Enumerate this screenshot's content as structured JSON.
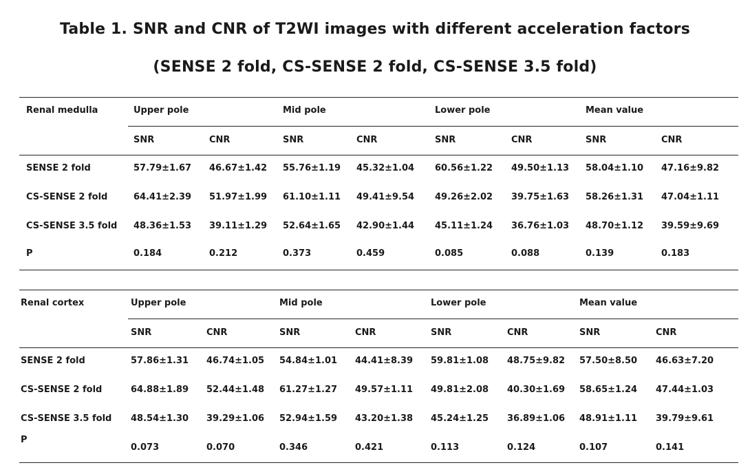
{
  "title_line1": "Table 1. SNR and CNR of T2WI images with different acceleration factors",
  "title_line2": "(SENSE 2 fold, CS-SENSE 2 fold, CS-SENSE 3.5 fold)",
  "tables": [
    {
      "label": "Renal medulla",
      "groups": [
        "Upper pole",
        "Mid pole",
        "Lower pole",
        "Mean value"
      ],
      "subheaders": [
        "SNR",
        "CNR",
        "SNR",
        "CNR",
        "SNR",
        "CNR",
        "SNR",
        "CNR"
      ],
      "rows": [
        {
          "name": "SENSE 2 fold",
          "values": [
            "57.79±1.67",
            "46.67±1.42",
            "55.76±1.19",
            "45.32±1.04",
            "60.56±1.22",
            "49.50±1.13",
            "58.04±1.10",
            "47.16±9.82"
          ]
        },
        {
          "name": "CS-SENSE 2 fold",
          "values": [
            "64.41±2.39",
            "51.97±1.99",
            "61.10±1.11",
            "49.41±9.54",
            "49.26±2.02",
            "39.75±1.63",
            "58.26±1.31",
            "47.04±1.11"
          ]
        },
        {
          "name": "CS-SENSE 3.5 fold",
          "values": [
            "48.36±1.53",
            "39.11±1.29",
            "52.64±1.65",
            "42.90±1.44",
            "45.11±1.24",
            "36.76±1.03",
            "48.70±1.12",
            "39.59±9.69"
          ]
        },
        {
          "name": "P",
          "values": [
            "0.184",
            "0.212",
            "0.373",
            "0.459",
            "0.085",
            "0.088",
            "0.139",
            "0.183"
          ]
        }
      ]
    },
    {
      "label": "Renal cortex",
      "groups": [
        "Upper pole",
        "Mid pole",
        "Lower pole",
        "Mean value"
      ],
      "subheaders": [
        "SNR",
        "CNR",
        "SNR",
        "CNR",
        "SNR",
        "CNR",
        "SNR",
        "CNR"
      ],
      "rows": [
        {
          "name": "SENSE 2 fold",
          "values": [
            "57.86±1.31",
            "46.74±1.05",
            "54.84±1.01",
            "44.41±8.39",
            "59.81±1.08",
            "48.75±9.82",
            "57.50±8.50",
            "46.63±7.20"
          ]
        },
        {
          "name": "CS-SENSE 2 fold",
          "values": [
            "64.88±1.89",
            "52.44±1.48",
            "61.27±1.27",
            "49.57±1.11",
            "49.81±2.08",
            "40.30±1.69",
            "58.65±1.24",
            "47.44±1.03"
          ]
        },
        {
          "name": "CS-SENSE 3.5 fold",
          "values": [
            "48.54±1.30",
            "39.29±1.06",
            "52.94±1.59",
            "43.20±1.38",
            "45.24±1.25",
            "36.89±1.06",
            "48.91±1.11",
            "39.79±9.61"
          ]
        },
        {
          "name": "P",
          "values": [
            "0.073",
            "0.070",
            "0.346",
            "0.421",
            "0.113",
            "0.124",
            "0.107",
            "0.141"
          ]
        }
      ]
    }
  ]
}
